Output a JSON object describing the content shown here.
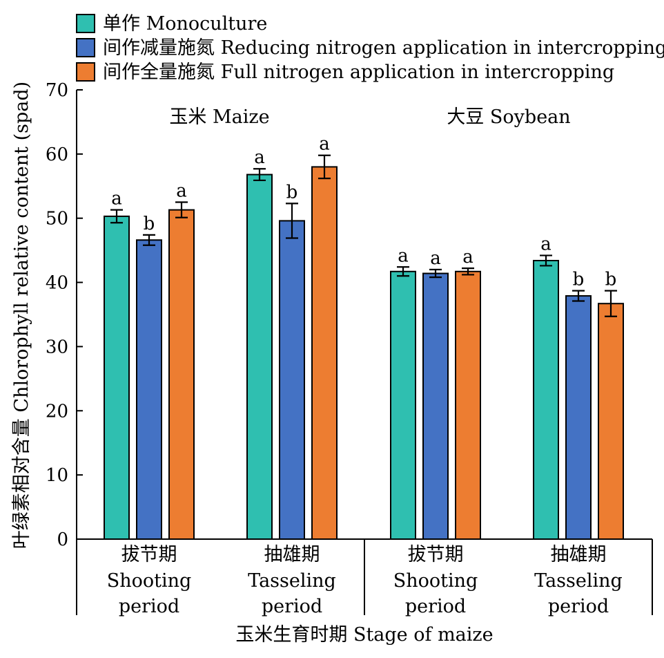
{
  "chart_data": {
    "type": "bar",
    "ylabel": "叶绿素相对含量 Chlorophyll relative content (spad)",
    "xlabel": "玉米生育时期 Stage of maize",
    "ylim": [
      0,
      70
    ],
    "yticks": [
      0,
      10,
      20,
      30,
      40,
      50,
      60,
      70
    ],
    "legend": {
      "placement": "top-left",
      "items": [
        {
          "label": "单作 Monoculture",
          "color": "#2fbfb0"
        },
        {
          "label": "间作减量施氮 Reducing nitrogen application in intercropping",
          "color": "#4472c4"
        },
        {
          "label": "间作全量施氮 Full nitrogen application in intercropping",
          "color": "#ed7d31"
        }
      ]
    },
    "groups": [
      {
        "label": "玉米 Maize",
        "stages": [
          {
            "cn": "拔节期",
            "en1": "Shooting",
            "en2": "period",
            "bars": [
              {
                "value": 50.3,
                "err": 1.0,
                "sig": "a"
              },
              {
                "value": 46.6,
                "err": 0.8,
                "sig": "b"
              },
              {
                "value": 51.3,
                "err": 1.2,
                "sig": "a"
              }
            ]
          },
          {
            "cn": "抽雄期",
            "en1": "Tasseling",
            "en2": "period",
            "bars": [
              {
                "value": 56.8,
                "err": 0.9,
                "sig": "a"
              },
              {
                "value": 49.6,
                "err": 2.7,
                "sig": "b"
              },
              {
                "value": 58.0,
                "err": 1.8,
                "sig": "a"
              }
            ]
          }
        ]
      },
      {
        "label": "大豆 Soybean",
        "stages": [
          {
            "cn": "拔节期",
            "en1": "Shooting",
            "en2": "period",
            "bars": [
              {
                "value": 41.7,
                "err": 0.7,
                "sig": "a"
              },
              {
                "value": 41.4,
                "err": 0.6,
                "sig": "a"
              },
              {
                "value": 41.7,
                "err": 0.5,
                "sig": "a"
              }
            ]
          },
          {
            "cn": "抽雄期",
            "en1": "Tasseling",
            "en2": "period",
            "bars": [
              {
                "value": 43.4,
                "err": 0.8,
                "sig": "a"
              },
              {
                "value": 37.9,
                "err": 0.8,
                "sig": "b"
              },
              {
                "value": 36.7,
                "err": 2.0,
                "sig": "b"
              }
            ]
          }
        ]
      }
    ]
  }
}
